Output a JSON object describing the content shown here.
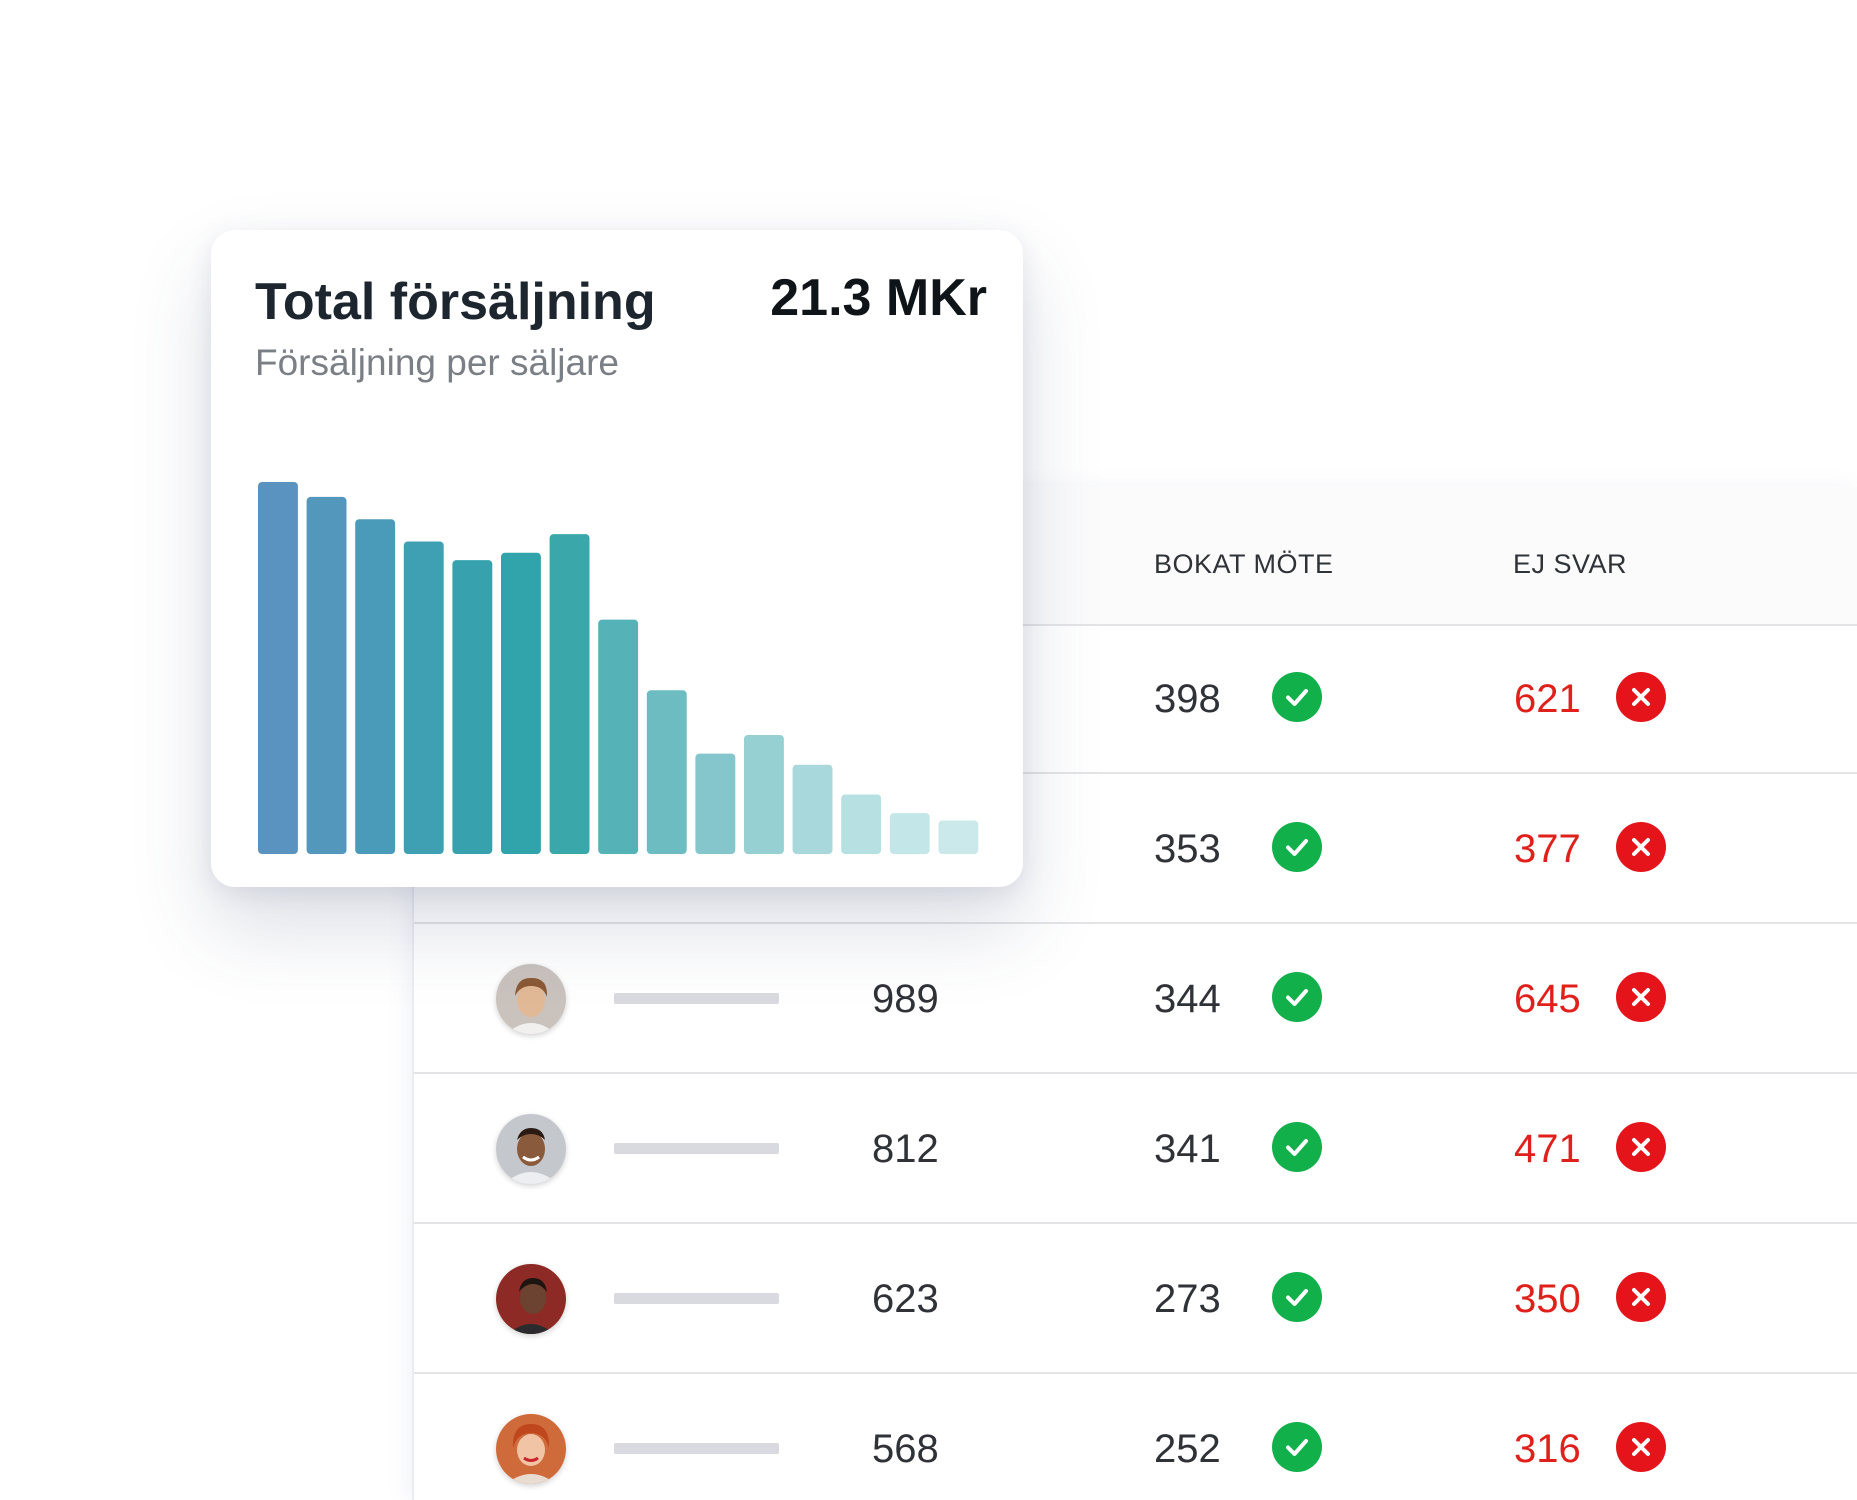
{
  "card": {
    "title": "Total försäljning",
    "subtitle": "Försäljning per säljare",
    "total": "21.3 MKr"
  },
  "chart_data": {
    "type": "bar",
    "title": "Total försäljning",
    "subtitle": "Försäljning per säljare",
    "values": [
      100,
      96,
      90,
      84,
      79,
      81,
      86,
      63,
      44,
      27,
      32,
      24,
      16,
      11,
      9
    ],
    "bar_colors": [
      "#5b93c0",
      "#5397bd",
      "#4a9bb9",
      "#40a0b3",
      "#37a2ae",
      "#30a4aa",
      "#3aa8ab",
      "#55b2b6",
      "#6cbcc1",
      "#84c6cb",
      "#97d0d3",
      "#a8d8db",
      "#b7e0e2",
      "#c3e6e8",
      "#cbe9eb"
    ],
    "ylim": [
      0,
      100
    ],
    "grid": false,
    "legend": "none"
  },
  "table": {
    "columns": {
      "booked": "BOKAT MÖTE",
      "no_answer": "EJ SVAR"
    },
    "rows": [
      {
        "total": "",
        "booked": "398",
        "no_answer": "621",
        "avatar": "none"
      },
      {
        "total": "",
        "booked": "353",
        "no_answer": "377",
        "avatar": "none"
      },
      {
        "total": "989",
        "booked": "344",
        "no_answer": "645",
        "avatar": "young-man-avatar"
      },
      {
        "total": "812",
        "booked": "341",
        "no_answer": "471",
        "avatar": "smiling-man-avatar"
      },
      {
        "total": "623",
        "booked": "273",
        "no_answer": "350",
        "avatar": "woman-red-background-avatar"
      },
      {
        "total": "568",
        "booked": "252",
        "no_answer": "316",
        "avatar": "red-haired-woman-avatar"
      }
    ]
  },
  "colors": {
    "success": "#12b04a",
    "error": "#e4141a",
    "error_text": "#e0201b"
  }
}
